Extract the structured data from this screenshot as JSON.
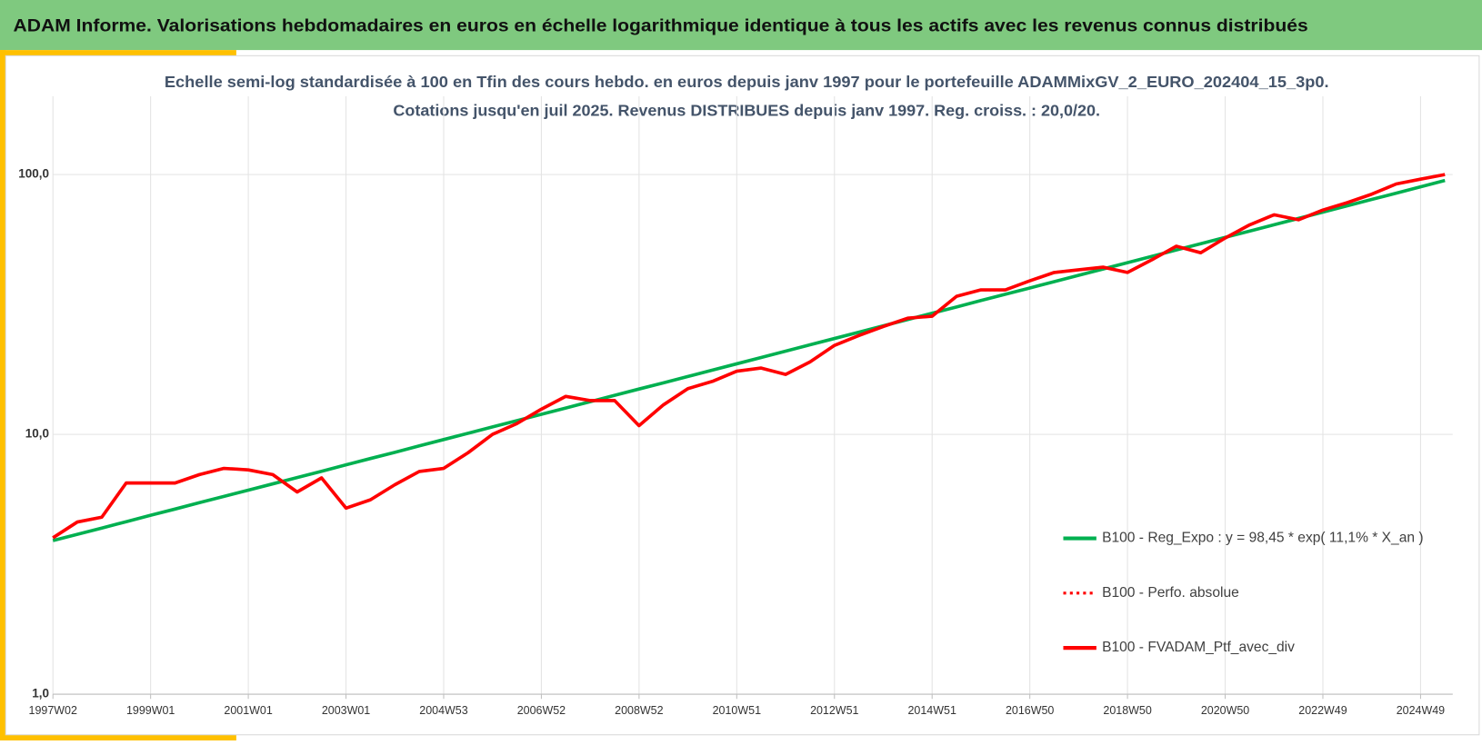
{
  "header": {
    "title": "ADAM Informe. Valorisations hebdomadaires en euros en échelle logarithmique identique à tous les actifs avec les revenus connus distribués"
  },
  "chart_data": {
    "type": "line",
    "title": "Echelle semi-log standardisée à 100 en Tfin des cours hebdo. en euros depuis janv 1997 pour le portefeuille ADAMMixGV_2_EURO_202404_15_3p0.",
    "subtitle": "Cotations jusqu'en juil 2025. Revenus DISTRIBUES depuis janv 1997. Reg. croiss. : 20,0/20.",
    "categories": [
      "1997W02",
      null,
      null,
      null,
      "1999W01",
      null,
      null,
      null,
      "2001W01",
      null,
      null,
      null,
      "2003W01",
      null,
      null,
      null,
      "2004W53",
      null,
      null,
      null,
      "2006W52",
      null,
      null,
      null,
      "2008W52",
      null,
      null,
      null,
      "2010W51",
      null,
      null,
      null,
      "2012W51",
      null,
      null,
      null,
      "2014W51",
      null,
      null,
      null,
      "2016W50",
      null,
      null,
      null,
      "2018W50",
      null,
      null,
      null,
      "2020W50",
      null,
      null,
      null,
      "2022W49",
      null,
      null,
      null,
      "2024W49",
      null
    ],
    "series": [
      {
        "name": "B100 - Reg_Expo : y = 98,45 * exp( 11,1% *  X_an )",
        "color": "#00b050",
        "style": "solid",
        "values": [
          3.9,
          4.12,
          4.36,
          4.61,
          4.88,
          5.16,
          5.46,
          5.77,
          6.1,
          6.45,
          6.82,
          7.21,
          7.63,
          8.07,
          8.53,
          9.03,
          9.55,
          10.1,
          10.68,
          11.29,
          11.94,
          12.63,
          13.36,
          14.13,
          14.94,
          15.8,
          16.71,
          17.67,
          18.69,
          19.77,
          20.91,
          22.11,
          23.39,
          24.73,
          26.16,
          27.67,
          29.26,
          30.94,
          32.73,
          34.61,
          36.61,
          38.72,
          40.95,
          43.31,
          45.8,
          48.44,
          51.23,
          54.18,
          57.3,
          60.6,
          64.09,
          67.79,
          71.69,
          75.82,
          80.19,
          84.81,
          89.7,
          94.87
        ]
      },
      {
        "name": "B100 - Perfo. absolue",
        "color": "#ff0000",
        "style": "dotted",
        "values": [
          4.0,
          4.6,
          4.8,
          6.5,
          6.5,
          6.5,
          7.0,
          7.4,
          7.3,
          7.0,
          6.0,
          6.8,
          5.2,
          5.6,
          6.4,
          7.2,
          7.4,
          8.5,
          10.0,
          11.0,
          12.5,
          14.0,
          13.5,
          13.5,
          10.8,
          13.0,
          15.0,
          16.0,
          17.5,
          18.0,
          17.0,
          19.0,
          22.0,
          24.0,
          26.0,
          28.0,
          28.5,
          34.0,
          36.0,
          36.0,
          39.0,
          42.0,
          43.0,
          44.0,
          42.0,
          47.0,
          53.0,
          50.0,
          57.0,
          64.0,
          70.0,
          67.0,
          73.0,
          78.0,
          84.0,
          92.0,
          96.0,
          100.0
        ]
      },
      {
        "name": "B100 - FVADAM_Ptf_avec_div",
        "color": "#ff0000",
        "style": "solid",
        "values": [
          4.0,
          4.6,
          4.8,
          6.5,
          6.5,
          6.5,
          7.0,
          7.4,
          7.3,
          7.0,
          6.0,
          6.8,
          5.2,
          5.6,
          6.4,
          7.2,
          7.4,
          8.5,
          10.0,
          11.0,
          12.5,
          14.0,
          13.5,
          13.5,
          10.8,
          13.0,
          15.0,
          16.0,
          17.5,
          18.0,
          17.0,
          19.0,
          22.0,
          24.0,
          26.0,
          28.0,
          28.5,
          34.0,
          36.0,
          36.0,
          39.0,
          42.0,
          43.0,
          44.0,
          42.0,
          47.0,
          53.0,
          50.0,
          57.0,
          64.0,
          70.0,
          67.0,
          73.0,
          78.0,
          84.0,
          92.0,
          96.0,
          100.0
        ]
      }
    ],
    "log_scale": true,
    "ylim": [
      1,
      200
    ],
    "yticks": [
      {
        "value": 1,
        "label": "1,0"
      },
      {
        "value": 10,
        "label": "10,0"
      },
      {
        "value": 100,
        "label": "100,0"
      }
    ],
    "grid": true,
    "legend": "right"
  }
}
